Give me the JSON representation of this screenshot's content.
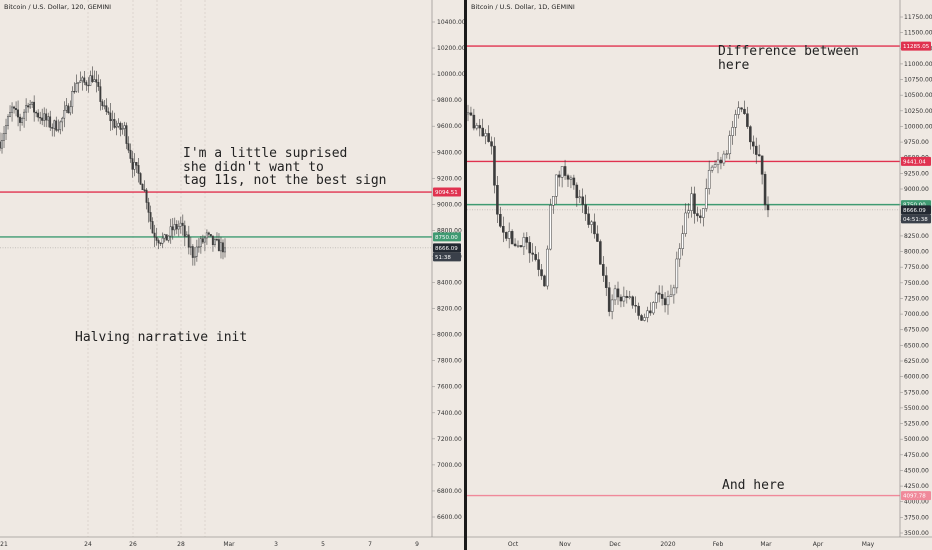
{
  "panels": [
    {
      "id": "left",
      "header": "Bitcoin / U.S. Dollar, 120, GEMINI",
      "y_axis": {
        "ticks": [
          "10400.00",
          "10200.00",
          "10000.00",
          "9800.00",
          "9600.00",
          "9400.00",
          "9200.00",
          "9000.00",
          "8800.00",
          "8600.00",
          "8400.00",
          "8200.00",
          "8000.00",
          "7800.00",
          "7600.00",
          "7400.00",
          "7200.00",
          "7000.00",
          "6800.00",
          "6600.00"
        ],
        "tick_values": [
          10400,
          10200,
          10000,
          9800,
          9600,
          9400,
          9200,
          9000,
          8800,
          8600,
          8400,
          8200,
          8000,
          7800,
          7600,
          7400,
          7200,
          7000,
          6800,
          6600
        ]
      },
      "x_axis": {
        "ticks": [
          "21",
          "24",
          "26",
          "28",
          "Mar",
          "3",
          "5",
          "7",
          "9"
        ]
      },
      "levels": [
        {
          "label": "9094.51",
          "value": 9094.51,
          "color": "#e0324f"
        },
        {
          "label": "8750.00",
          "value": 8750.0,
          "color": "#3f9a72"
        },
        {
          "label": "8666.09",
          "value": 8666.09,
          "color": "#222831"
        }
      ],
      "countdown": "51:38",
      "annotations": [
        {
          "id": "surprise-note",
          "lines": [
            "I'm a little suprised",
            "she didn't want to",
            "tag 11s, not the best sign"
          ]
        },
        {
          "id": "halving-note",
          "lines": [
            "Halving narrative init"
          ]
        }
      ]
    },
    {
      "id": "right",
      "header": "Bitcoin / U.S. Dollar, 1D, GEMINI",
      "y_axis": {
        "ticks": [
          "11750.00",
          "11500.00",
          "11250.00",
          "11000.00",
          "10750.00",
          "10500.00",
          "10250.00",
          "10000.00",
          "9750.00",
          "9500.00",
          "9250.00",
          "9000.00",
          "8750.00",
          "8500.00",
          "8250.00",
          "8000.00",
          "7750.00",
          "7500.00",
          "7250.00",
          "7000.00",
          "6750.00",
          "6500.00",
          "6250.00",
          "6000.00",
          "5750.00",
          "5500.00",
          "5250.00",
          "5000.00",
          "4750.00",
          "4500.00",
          "4250.00",
          "4000.00",
          "3750.00",
          "3500.00"
        ],
        "tick_values": [
          11750,
          11500,
          11250,
          11000,
          10750,
          10500,
          10250,
          10000,
          9750,
          9500,
          9250,
          9000,
          8750,
          8500,
          8250,
          8000,
          7750,
          7500,
          7250,
          7000,
          6750,
          6500,
          6250,
          6000,
          5750,
          5500,
          5250,
          5000,
          4750,
          4500,
          4250,
          4000,
          3750,
          3500
        ]
      },
      "x_axis": {
        "ticks": [
          "Oct",
          "Nov",
          "Dec",
          "2020",
          "Feb",
          "Mar",
          "Apr",
          "May"
        ]
      },
      "levels": [
        {
          "label": "11285.05",
          "value": 11285.05,
          "color": "#e0324f"
        },
        {
          "label": "9441.04",
          "value": 9441.04,
          "color": "#e0324f"
        },
        {
          "label": "8750.00",
          "value": 8750.0,
          "color": "#3f9a72"
        },
        {
          "label": "8666.09",
          "value": 8666.09,
          "color": "#222831"
        },
        {
          "label": "4097.78",
          "value": 4097.78,
          "color": "#f0899a"
        }
      ],
      "countdown": "04:51:38",
      "annotations": [
        {
          "id": "difference-note",
          "lines": [
            "Difference between",
            "here"
          ]
        },
        {
          "id": "and-here-note",
          "lines": [
            "And here"
          ]
        }
      ]
    }
  ],
  "chart_data": [
    {
      "type": "candlestick",
      "title": "Bitcoin / U.S. Dollar, 120, GEMINI",
      "x_categories": [
        "21",
        "24",
        "26",
        "28",
        "Mar",
        "3",
        "5",
        "7",
        "9"
      ],
      "ylim": [
        6500,
        10550
      ],
      "close_path": [
        [
          0,
          9480
        ],
        [
          3,
          9600
        ],
        [
          6,
          9730
        ],
        [
          10,
          9640
        ],
        [
          14,
          9790
        ],
        [
          18,
          9700
        ],
        [
          22,
          9660
        ],
        [
          26,
          9600
        ],
        [
          30,
          9620
        ],
        [
          34,
          9750
        ],
        [
          38,
          9940
        ],
        [
          42,
          9930
        ],
        [
          46,
          9980
        ],
        [
          49,
          9860
        ],
        [
          52,
          9720
        ],
        [
          56,
          9640
        ],
        [
          59,
          9580
        ],
        [
          62,
          9580
        ],
        [
          66,
          9310
        ],
        [
          70,
          9200
        ],
        [
          73,
          9050
        ],
        [
          76,
          8790
        ],
        [
          79,
          8740
        ],
        [
          82,
          8720
        ],
        [
          86,
          8810
        ],
        [
          90,
          8840
        ],
        [
          93,
          8720
        ],
        [
          96,
          8620
        ],
        [
          100,
          8700
        ],
        [
          103,
          8750
        ],
        [
          106,
          8700
        ],
        [
          109,
          8680
        ],
        [
          112,
          8666.09
        ]
      ],
      "last_close": 8666.09
    },
    {
      "type": "candlestick",
      "title": "Bitcoin / U.S. Dollar, 1D, GEMINI",
      "x_categories": [
        "Oct",
        "Nov",
        "Dec",
        "2020",
        "Feb",
        "Mar",
        "Apr",
        "May"
      ],
      "ylim": [
        3450,
        11950
      ],
      "close_path": [
        [
          0,
          10200
        ],
        [
          3,
          10000
        ],
        [
          6,
          9850
        ],
        [
          8,
          9600
        ],
        [
          10,
          8550
        ],
        [
          13,
          8300
        ],
        [
          16,
          8100
        ],
        [
          19,
          8200
        ],
        [
          22,
          7900
        ],
        [
          24,
          7800
        ],
        [
          26,
          7450
        ],
        [
          28,
          8800
        ],
        [
          30,
          9150
        ],
        [
          32,
          9300
        ],
        [
          34,
          9250
        ],
        [
          36,
          9000
        ],
        [
          38,
          8800
        ],
        [
          40,
          8550
        ],
        [
          42,
          8400
        ],
        [
          44,
          8100
        ],
        [
          46,
          7600
        ],
        [
          48,
          7100
        ],
        [
          50,
          7400
        ],
        [
          52,
          7250
        ],
        [
          54,
          7300
        ],
        [
          56,
          7200
        ],
        [
          58,
          7000
        ],
        [
          60,
          6950
        ],
        [
          62,
          7100
        ],
        [
          64,
          7350
        ],
        [
          66,
          7250
        ],
        [
          68,
          7200
        ],
        [
          70,
          7500
        ],
        [
          72,
          8100
        ],
        [
          74,
          8600
        ],
        [
          76,
          8900
        ],
        [
          78,
          8500
        ],
        [
          80,
          8700
        ],
        [
          82,
          9250
        ],
        [
          84,
          9400
        ],
        [
          86,
          9500
        ],
        [
          88,
          9650
        ],
        [
          90,
          10000
        ],
        [
          92,
          10200
        ],
        [
          94,
          10300
        ],
        [
          96,
          9800
        ],
        [
          98,
          9650
        ],
        [
          100,
          9300
        ],
        [
          101,
          8750
        ],
        [
          102,
          8666.09
        ]
      ],
      "last_close": 8666.09
    }
  ]
}
